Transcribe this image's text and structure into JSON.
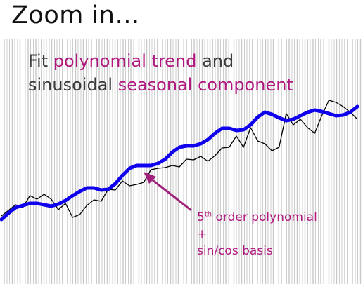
{
  "slide": {
    "title": "Zoom in…"
  },
  "caption": {
    "line1_prefix": "Fit ",
    "line1_accent": "polynomial trend",
    "line1_suffix": " and",
    "line2_prefix": "sinusoidal ",
    "line2_accent": "seasonal component"
  },
  "annotation": {
    "base_number": "5",
    "superscript": "th",
    "line1_rest": " order polynomial",
    "line2": "+",
    "line3": "sin/cos basis"
  },
  "colors": {
    "accent": "#b0177f",
    "fit_line": "#0f00ee",
    "data_line": "#000000",
    "gridlines": "#c8c8c8",
    "caption_text": "#3a3a3a",
    "arrow": "#a0207a"
  },
  "chart_data": {
    "type": "line",
    "x": [
      0,
      1,
      2,
      3,
      4,
      5,
      6,
      7,
      8,
      9,
      10,
      11,
      12,
      13,
      14,
      15,
      16,
      17,
      18,
      19,
      20,
      21,
      22,
      23,
      24,
      25,
      26,
      27,
      28,
      29,
      30,
      31,
      32,
      33,
      34,
      35,
      36,
      37,
      38,
      39,
      40,
      41,
      42,
      43,
      44,
      45,
      46,
      47,
      48,
      49,
      50
    ],
    "series": [
      {
        "values": [
          308,
          300,
          292,
          296,
          279,
          284,
          277,
          284,
          299,
          290,
          310,
          306,
          293,
          285,
          287,
          270,
          271,
          258,
          265,
          263,
          260,
          242,
          240,
          239,
          236,
          238,
          227,
          228,
          223,
          230,
          222,
          211,
          210,
          194,
          210,
          182,
          201,
          205,
          215,
          210,
          162,
          178,
          170,
          182,
          190,
          165,
          143,
          146,
          152,
          160,
          170
        ]
      },
      {
        "values": [
          313,
          304,
          296,
          293,
          290,
          290,
          292,
          294,
          291,
          286,
          279,
          273,
          268,
          268,
          271,
          270,
          262,
          250,
          240,
          236,
          236,
          236,
          233,
          227,
          217,
          210,
          208,
          208,
          205,
          199,
          190,
          183,
          183,
          186,
          185,
          178,
          167,
          160,
          163,
          168,
          172,
          170,
          165,
          160,
          157,
          159,
          162,
          165,
          164,
          160,
          152
        ]
      }
    ]
  }
}
